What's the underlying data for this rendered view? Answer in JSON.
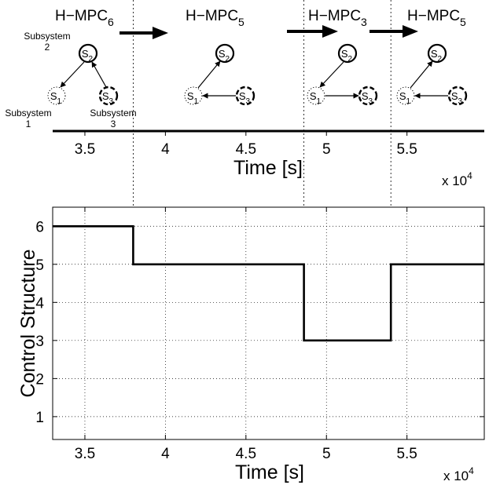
{
  "timeline": {
    "x_range": [
      33000,
      59800
    ],
    "ticks": [
      35000,
      40000,
      45000,
      50000,
      55000
    ],
    "tick_labels": [
      "3.5",
      "4",
      "4.5",
      "5",
      "5.5"
    ],
    "xlabel": "Time [s]",
    "exponent_base": "x 10",
    "exponent_power": "4",
    "switch_times": [
      38000,
      48600,
      54000
    ],
    "controllers": [
      {
        "base": "H−MPC",
        "sub": "6"
      },
      {
        "base": "H−MPC",
        "sub": "5"
      },
      {
        "base": "H−MPC",
        "sub": "3"
      },
      {
        "base": "H−MPC",
        "sub": "5"
      }
    ],
    "subsystem_labels": [
      {
        "line1": "Subsystem",
        "line2": "2"
      },
      {
        "line1": "Subsystem",
        "line2": "1"
      },
      {
        "line1": "Subsystem",
        "line2": "3"
      }
    ],
    "node_names": [
      {
        "base": "S",
        "sub": "2"
      },
      {
        "base": "S",
        "sub": "1"
      },
      {
        "base": "S",
        "sub": "3"
      }
    ]
  },
  "chart_data": {
    "type": "line",
    "step": true,
    "x": [
      33000,
      38000,
      38000,
      48600,
      48600,
      54000,
      54000,
      59800
    ],
    "y": [
      6,
      6,
      5,
      5,
      3,
      3,
      5,
      5
    ],
    "xlim": [
      33000,
      59800
    ],
    "ylim": [
      0.4,
      6.5
    ],
    "xticks": [
      35000,
      40000,
      45000,
      50000,
      55000
    ],
    "xtick_labels": [
      "3.5",
      "4",
      "4.5",
      "5",
      "5.5"
    ],
    "yticks": [
      1,
      2,
      3,
      4,
      5,
      6
    ],
    "ytick_labels": [
      "1",
      "2",
      "3",
      "4",
      "5",
      "6"
    ],
    "xlabel": "Time [s]",
    "ylabel": "Control Structure",
    "exponent_base": "x 10",
    "exponent_power": "4",
    "grid": true
  }
}
